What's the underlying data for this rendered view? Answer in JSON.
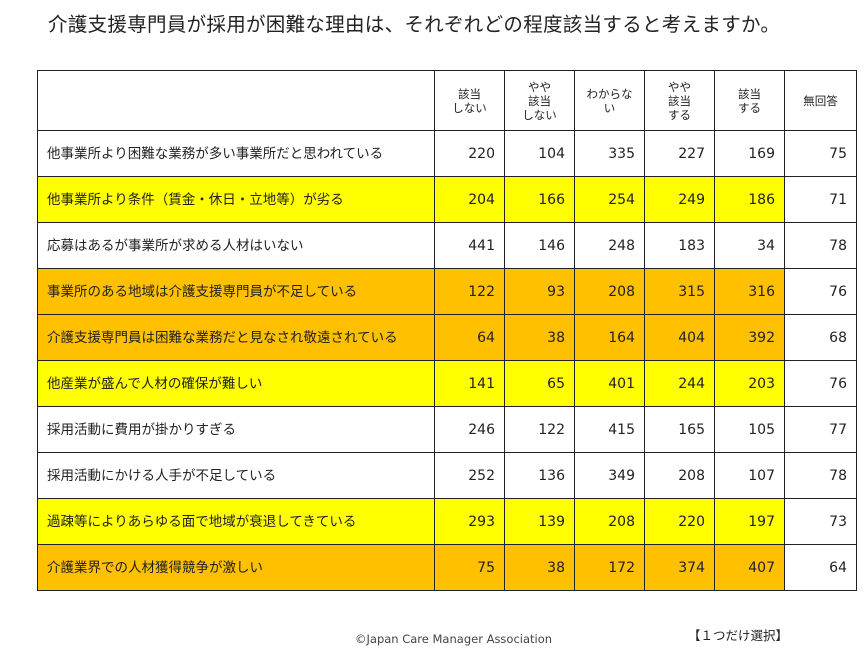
{
  "title": "介護支援専門員が採用が困難な理由は、それぞれどの程度該当すると考えますか。",
  "columns": [
    "該当\nしない",
    "やや\n該当\nしない",
    "わからな\nい",
    "やや\n該当\nする",
    "該当\nする",
    "無回答"
  ],
  "colors": {
    "yellow": "#ffff00",
    "orange": "#ffc000",
    "white": "#ffffff"
  },
  "rows": [
    {
      "label": "他事業所より困難な業務が多い事業所だと思われている",
      "highlight": "white",
      "values": [
        "220",
        "104",
        "335",
        "227",
        "169",
        "75"
      ]
    },
    {
      "label": "他事業所より条件（賃金・休日・立地等）が劣る",
      "highlight": "yellow",
      "values": [
        "204",
        "166",
        "254",
        "249",
        "186",
        "71"
      ]
    },
    {
      "label": "応募はあるが事業所が求める人材はいない",
      "highlight": "white",
      "values": [
        "441",
        "146",
        "248",
        "183",
        "34",
        "78"
      ]
    },
    {
      "label": "事業所のある地域は介護支援専門員が不足している",
      "highlight": "orange",
      "values": [
        "122",
        "93",
        "208",
        "315",
        "316",
        "76"
      ]
    },
    {
      "label": "介護支援専門員は困難な業務だと見なされ敬遠されている",
      "highlight": "orange",
      "values": [
        "64",
        "38",
        "164",
        "404",
        "392",
        "68"
      ]
    },
    {
      "label": "他産業が盛んで人材の確保が難しい",
      "highlight": "yellow",
      "values": [
        "141",
        "65",
        "401",
        "244",
        "203",
        "76"
      ]
    },
    {
      "label": "採用活動に費用が掛かりすぎる",
      "highlight": "white",
      "values": [
        "246",
        "122",
        "415",
        "165",
        "105",
        "77"
      ]
    },
    {
      "label": "採用活動にかける人手が不足している",
      "highlight": "white",
      "values": [
        "252",
        "136",
        "349",
        "208",
        "107",
        "78"
      ]
    },
    {
      "label": "過疎等によりあらゆる面で地域が衰退してきている",
      "highlight": "yellow",
      "values": [
        "293",
        "139",
        "208",
        "220",
        "197",
        "73"
      ]
    },
    {
      "label": "介護業界での人材獲得競争が激しい",
      "highlight": "orange",
      "values": [
        "75",
        "38",
        "172",
        "374",
        "407",
        "64"
      ]
    }
  ],
  "footer": {
    "copyright": "©Japan Care Manager Association",
    "note": "【１つだけ選択】"
  }
}
